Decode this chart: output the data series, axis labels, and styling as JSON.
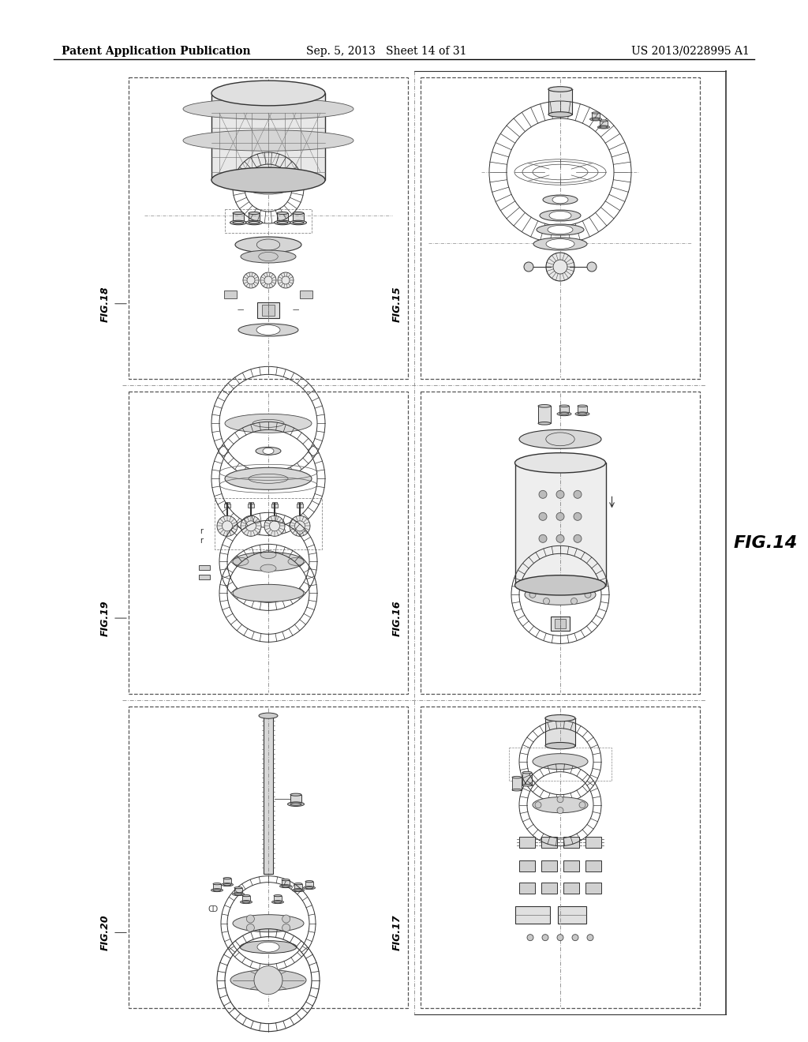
{
  "background_color": "#ffffff",
  "header_text_left": "Patent Application Publication",
  "header_text_mid": "Sep. 5, 2013   Sheet 14 of 31",
  "header_text_right": "US 2013/0228995 A1",
  "main_label": "FIG.14",
  "fig_labels": [
    "FIG.18",
    "FIG.15",
    "FIG.19",
    "FIG.16",
    "FIG.20",
    "FIG.17"
  ],
  "line_color": "#222222",
  "dash_color": "#444444",
  "gear_color": "#333333",
  "light_fill": "#e8e8e8",
  "medium_fill": "#cccccc",
  "dark_fill": "#aaaaaa"
}
